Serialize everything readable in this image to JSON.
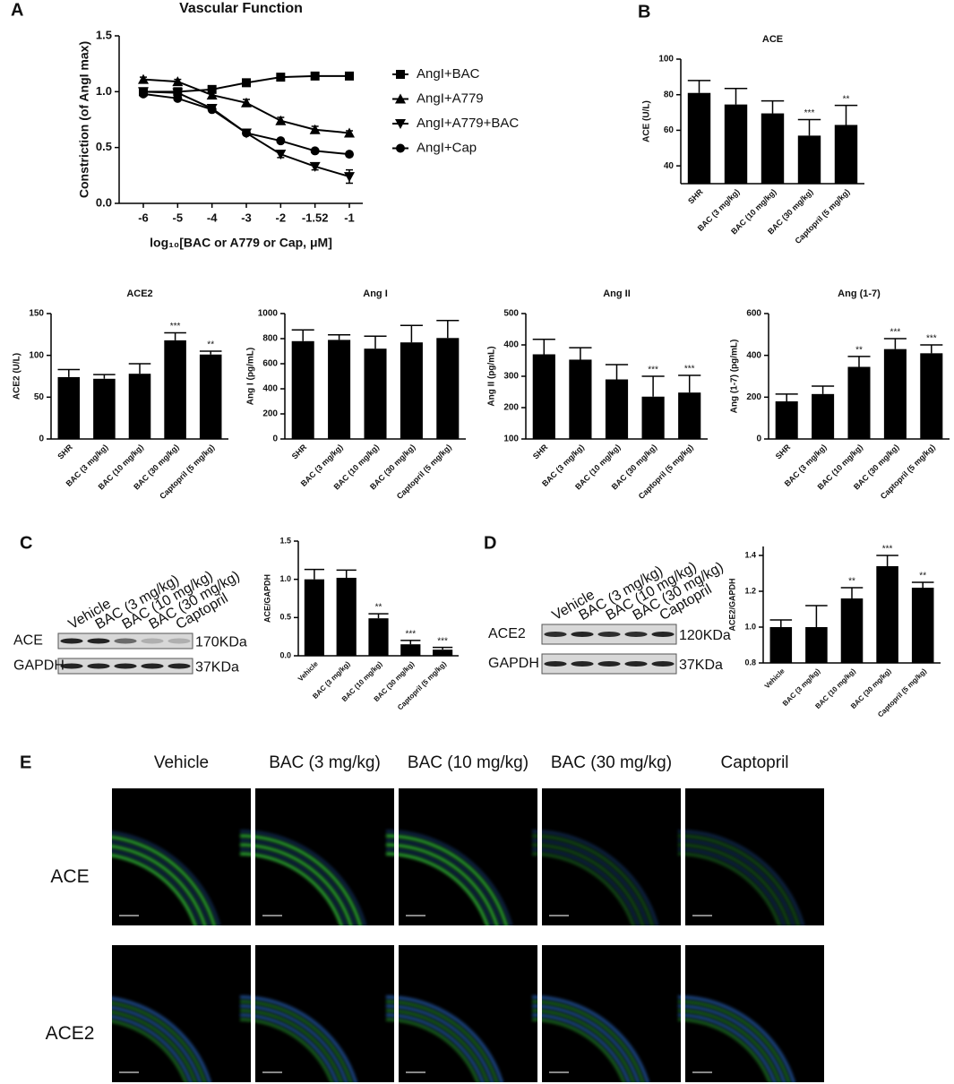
{
  "panel_labels": [
    "A",
    "B",
    "C",
    "D",
    "E"
  ],
  "chart_data": [
    {
      "type": "line",
      "title": "Vascular Function",
      "y_label": "Constriction (of AngI max)",
      "x_label": "log₁₀[BAC or A779 or Cap, μM]",
      "categories": [
        "-6",
        "-5",
        "-4",
        "-3",
        "-2",
        "-1.52",
        "-1"
      ],
      "ylim": [
        0,
        1.5
      ],
      "yticks": [
        {
          "value": 0,
          "label": "0.0"
        },
        0.5,
        {
          "value": 1,
          "label": "1.0"
        },
        1.5
      ],
      "legend": "right",
      "series": [
        {
          "name": "AngI+BAC",
          "marker": "square",
          "color": "#000000",
          "values": [
            1.0,
            1.0,
            1.02,
            1.08,
            1.13,
            1.14,
            1.14
          ],
          "errors": [
            0.01,
            0.01,
            0.01,
            0.02,
            0.01,
            0.01,
            0.01
          ]
        },
        {
          "name": "AngI+A779",
          "marker": "triangle-up",
          "color": "#000000",
          "values": [
            1.11,
            1.09,
            0.97,
            0.9,
            0.74,
            0.66,
            0.63
          ],
          "errors": [
            0.02,
            0.02,
            0.02,
            0.03,
            0.03,
            0.03,
            0.02
          ]
        },
        {
          "name": "AngI+A779+BAC",
          "marker": "triangle-down",
          "color": "#000000",
          "values": [
            1.0,
            0.99,
            0.85,
            0.63,
            0.44,
            0.33,
            0.24
          ],
          "errors": [
            0.01,
            0.01,
            0.02,
            0.02,
            0.03,
            0.03,
            0.06
          ]
        },
        {
          "name": "AngI+Cap",
          "marker": "circle",
          "color": "#000000",
          "values": [
            0.98,
            0.94,
            0.84,
            0.63,
            0.56,
            0.47,
            0.44
          ],
          "errors": [
            0.01,
            0.01,
            0.01,
            0.01,
            0.01,
            0.01,
            0.01
          ]
        }
      ]
    },
    {
      "type": "bar",
      "title": "ACE",
      "y_label": "ACE (U/L)",
      "color": "#000000",
      "categories": [
        "SHR",
        "BAC (3 mg/kg)",
        "BAC (10 mg/kg)",
        "BAC (30 mg/kg)",
        "Captopril (5 mg/kg)"
      ],
      "values": [
        81,
        74.5,
        69.5,
        57,
        63
      ],
      "errors": [
        7,
        9,
        7,
        9,
        11
      ],
      "annotations": [
        null,
        null,
        null,
        "***",
        "**"
      ],
      "ylim": [
        30,
        100
      ],
      "yticks": [
        40,
        60,
        80,
        100
      ]
    },
    {
      "type": "bar",
      "title": "ACE2",
      "y_label": "ACE2 (U/L)",
      "color": "#000000",
      "categories": [
        "SHR",
        "BAC (3 mg/kg)",
        "BAC (10 mg/kg)",
        "BAC (30 mg/kg)",
        "Captopril (5 mg/kg)"
      ],
      "values": [
        74,
        72,
        78,
        118,
        101
      ],
      "errors": [
        9,
        5,
        12,
        9,
        4
      ],
      "annotations": [
        null,
        null,
        null,
        "***",
        "**"
      ],
      "ylim": [
        0,
        150
      ],
      "yticks": [
        0,
        50,
        100,
        150
      ]
    },
    {
      "type": "bar",
      "title": "Ang I",
      "y_label": "Ang I (pg/mL)",
      "color": "#000000",
      "categories": [
        "SHR",
        "BAC (3 mg/kg)",
        "BAC (10 mg/kg)",
        "BAC (30 mg/kg)",
        "Captopril (5 mg/kg)"
      ],
      "values": [
        780,
        790,
        720,
        770,
        805
      ],
      "errors": [
        90,
        40,
        100,
        135,
        140
      ],
      "annotations": [
        null,
        null,
        null,
        null,
        null
      ],
      "ylim": [
        0,
        1000
      ],
      "yticks": [
        0,
        200,
        400,
        600,
        800,
        1000
      ]
    },
    {
      "type": "bar",
      "title": "Ang II",
      "y_label": "Ang II (pg/mL)",
      "color": "#000000",
      "categories": [
        "SHR",
        "BAC (3 mg/kg)",
        "BAC (10 mg/kg)",
        "BAC (30 mg/kg)",
        "Captopril (5 mg/kg)"
      ],
      "values": [
        370,
        353,
        290,
        235,
        248
      ],
      "errors": [
        48,
        38,
        47,
        65,
        55
      ],
      "annotations": [
        null,
        null,
        null,
        "***",
        "***"
      ],
      "ylim": [
        100,
        500
      ],
      "yticks": [
        100,
        200,
        300,
        400,
        500
      ]
    },
    {
      "type": "bar",
      "title": "Ang (1-7)",
      "y_label": "Ang (1-7) (pg/mL)",
      "color": "#000000",
      "categories": [
        "SHR",
        "BAC (3 mg/kg)",
        "BAC (10 mg/kg)",
        "BAC (30 mg/kg)",
        "Captopril (5 mg/kg)"
      ],
      "values": [
        180,
        215,
        345,
        430,
        410
      ],
      "errors": [
        35,
        38,
        50,
        50,
        40
      ],
      "annotations": [
        null,
        null,
        "**",
        "***",
        "***"
      ],
      "ylim": [
        0,
        600
      ],
      "yticks": [
        0,
        200,
        400,
        600
      ]
    },
    {
      "type": "bar",
      "y_label": "ACE/GAPDH",
      "color": "#000000",
      "categories": [
        "Vehicle",
        "BAC (3 mg/kg)",
        "BAC (10 mg/kg)",
        "BAC (30 mg/kg)",
        "Captopril (5 mg/kg)"
      ],
      "values": [
        1.0,
        1.02,
        0.49,
        0.15,
        0.08
      ],
      "errors": [
        0.13,
        0.1,
        0.06,
        0.05,
        0.03
      ],
      "annotations": [
        null,
        null,
        "**",
        "***",
        "***"
      ],
      "ylim": [
        0,
        1.5
      ],
      "yticks": [
        {
          "value": 0,
          "label": "0.0"
        },
        0.5,
        {
          "value": 1,
          "label": "1.0"
        },
        1.5
      ]
    },
    {
      "type": "bar",
      "y_label": "ACE2/GAPDH",
      "color": "#000000",
      "categories": [
        "Vehicle",
        "BAC (3 mg/kg)",
        "BAC (10 mg/kg)",
        "BAC (30 mg/kg)",
        "Captopril (5 mg/kg)"
      ],
      "values": [
        1.0,
        1.0,
        1.16,
        1.34,
        1.22
      ],
      "errors": [
        0.04,
        0.12,
        0.06,
        0.06,
        0.03
      ],
      "annotations": [
        null,
        null,
        "**",
        "***",
        "**"
      ],
      "ylim": [
        0.8,
        1.45
      ],
      "yticks": [
        0.8,
        {
          "value": 1,
          "label": "1.0"
        },
        1.2,
        1.4
      ]
    }
  ],
  "blots": [
    {
      "lanes": [
        "Vehicle",
        "BAC (3 mg/kg)",
        "BAC (10 mg/kg)",
        "BAC (30 mg/kg)",
        "Captopril"
      ],
      "rows": [
        {
          "label": "ACE",
          "size": "170KDa"
        },
        {
          "label": "GAPDH",
          "size": "37KDa"
        }
      ]
    },
    {
      "lanes": [
        "Vehicle",
        "BAC (3 mg/kg)",
        "BAC (10 mg/kg)",
        "BAC (30 mg/kg)",
        "Captopril"
      ],
      "rows": [
        {
          "label": "ACE2",
          "size": "120KDa"
        },
        {
          "label": "GAPDH",
          "size": "37KDa"
        }
      ]
    }
  ],
  "images": {
    "columns": [
      "Vehicle",
      "BAC (3 mg/kg)",
      "BAC (10 mg/kg)",
      "BAC (30 mg/kg)",
      "Captopril"
    ],
    "rows": [
      "ACE",
      "ACE2"
    ]
  }
}
